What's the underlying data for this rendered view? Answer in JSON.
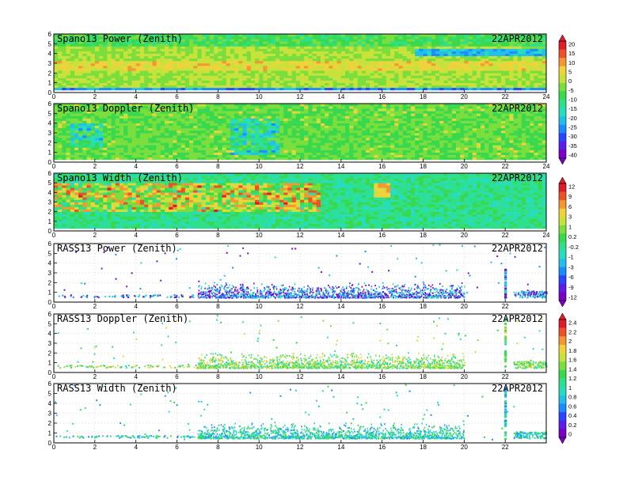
{
  "colors": {
    "scale": [
      "#7a00c8",
      "#5a1ee6",
      "#2a46ff",
      "#1c8cff",
      "#22c0e8",
      "#28dcc0",
      "#2ee08a",
      "#39d84e",
      "#7ade3c",
      "#c8e23c",
      "#f0d23c",
      "#f49632",
      "#ee5028",
      "#dc1e2a"
    ]
  },
  "chart_data": [
    {
      "type": "heatmap",
      "title": "Spano13 Power (Zenith)",
      "date": "22APR2012",
      "xticks": [
        "0",
        "2",
        "4",
        "6",
        "8",
        "10",
        "12",
        "14",
        "16",
        "18",
        "20",
        "22",
        "24"
      ],
      "yticks": [
        "0",
        "1",
        "2",
        "3",
        "4",
        "5",
        "6"
      ],
      "xlim": [
        0,
        24
      ],
      "ylim": [
        0,
        6
      ]
    },
    {
      "type": "heatmap",
      "title": "Spano13 Doppler (Zenith)",
      "date": "22APR2012",
      "xticks": [
        "0",
        "2",
        "4",
        "6",
        "8",
        "10",
        "12",
        "14",
        "16",
        "18",
        "20",
        "22",
        "24"
      ],
      "yticks": [
        "0",
        "1",
        "2",
        "3",
        "4",
        "5",
        "6"
      ],
      "xlim": [
        0,
        24
      ],
      "ylim": [
        0,
        6
      ]
    },
    {
      "type": "heatmap",
      "title": "Spano13 Width (Zenith)",
      "date": "22APR2012",
      "xticks": [
        "0",
        "2",
        "4",
        "6",
        "8",
        "10",
        "12",
        "14",
        "16",
        "18",
        "20",
        "22",
        "24"
      ],
      "yticks": [
        "0",
        "1",
        "2",
        "3",
        "4",
        "5",
        "6"
      ],
      "xlim": [
        0,
        24
      ],
      "ylim": [
        0,
        6
      ]
    },
    {
      "type": "heatmap",
      "title": "RASS13 Power (Zenith)",
      "date": "22APR2012",
      "xticks": [
        "0",
        "2",
        "4",
        "6",
        "8",
        "10",
        "12",
        "14",
        "16",
        "18",
        "20",
        "22"
      ],
      "yticks": [
        "0",
        "1",
        "2",
        "3",
        "4",
        "5",
        "6"
      ],
      "xlim": [
        0,
        24
      ],
      "ylim": [
        0,
        6
      ]
    },
    {
      "type": "heatmap",
      "title": "RASS13 Doppler (Zenith)",
      "date": "22APR2012",
      "xticks": [
        "0",
        "2",
        "4",
        "6",
        "8",
        "10",
        "12",
        "14",
        "16",
        "18",
        "20",
        "22"
      ],
      "yticks": [
        "0",
        "1",
        "2",
        "3",
        "4",
        "5",
        "6"
      ],
      "xlim": [
        0,
        24
      ],
      "ylim": [
        0,
        6
      ]
    },
    {
      "type": "heatmap",
      "title": "RASS13 Width (Zenith)",
      "date": "22APR2012",
      "xticks": [
        "0",
        "2",
        "4",
        "6",
        "8",
        "10",
        "12",
        "14",
        "16",
        "18",
        "20",
        "22"
      ],
      "yticks": [
        "0",
        "1",
        "2",
        "3",
        "4",
        "5",
        "6"
      ],
      "xlim": [
        0,
        24
      ],
      "ylim": [
        0,
        6
      ]
    }
  ],
  "colorbars": [
    {
      "labels": [
        "20",
        "15",
        "10",
        "5",
        "0",
        "-5",
        "-10",
        "-15",
        "-20",
        "-25",
        "-30",
        "-35",
        "-40"
      ]
    },
    {
      "labels": [
        "12",
        "9",
        "6",
        "3",
        "1",
        "0.2",
        "-0.2",
        "-1",
        "-3",
        "-6",
        "-9",
        "-12"
      ]
    },
    {
      "labels": [
        "2.4",
        "2.2",
        "2",
        "1.8",
        "1.6",
        "1.4",
        "1.2",
        "1",
        "0.8",
        "0.6",
        "0.4",
        "0.2",
        "0"
      ]
    }
  ]
}
